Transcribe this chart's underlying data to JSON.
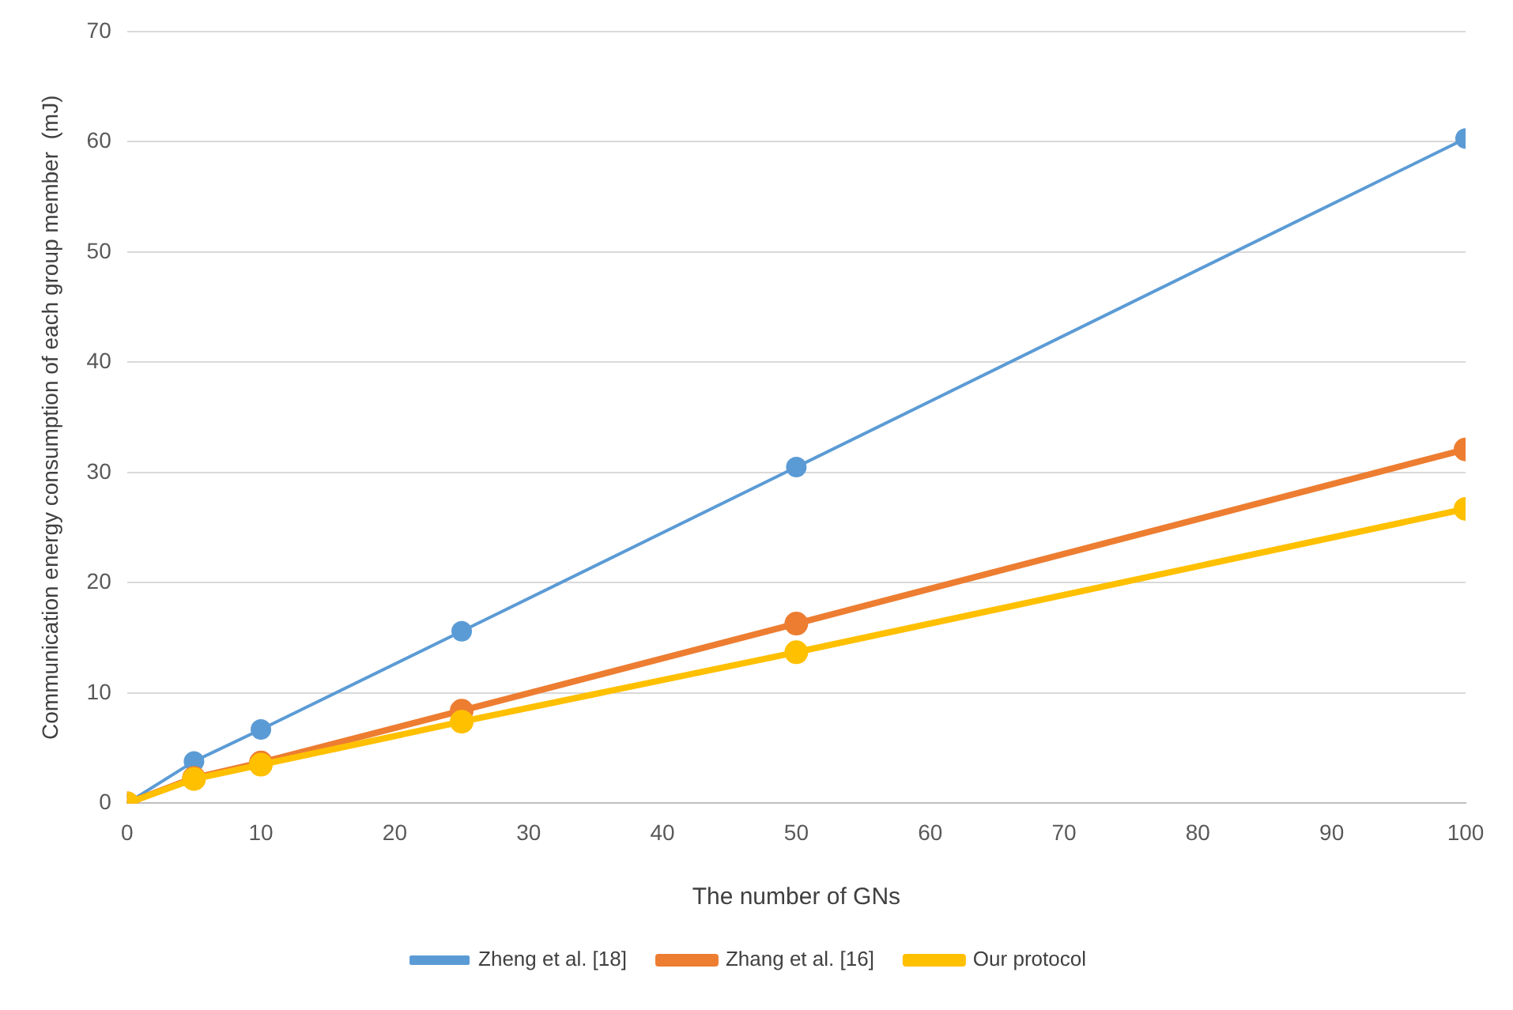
{
  "chart_data": {
    "type": "line",
    "xlabel": "The number of GNs",
    "ylabel": "Communication energy consumption of each group member  (mJ)",
    "x": [
      0,
      5,
      10,
      25,
      50,
      100
    ],
    "series": [
      {
        "name": "Zheng et al. [18]",
        "color": "#5b9bd5",
        "values": [
          0,
          3.8,
          6.7,
          15.6,
          30.5,
          60.3
        ]
      },
      {
        "name": "Zhang et al. [16]",
        "color": "#ed7d31",
        "values": [
          0,
          2.3,
          3.7,
          8.4,
          16.3,
          32.1
        ]
      },
      {
        "name": "Our protocol",
        "color": "#ffc000",
        "values": [
          0,
          2.2,
          3.5,
          7.4,
          13.7,
          26.7
        ]
      }
    ],
    "xlim": [
      0,
      100
    ],
    "xticks": [
      0,
      10,
      20,
      30,
      40,
      50,
      60,
      70,
      80,
      90,
      100
    ],
    "ylim": [
      0,
      70
    ],
    "yticks": [
      0,
      10,
      20,
      30,
      40,
      50,
      60,
      70
    ],
    "grid": "y",
    "legend": "bottom",
    "marker": "circle",
    "line_style": "solid"
  }
}
